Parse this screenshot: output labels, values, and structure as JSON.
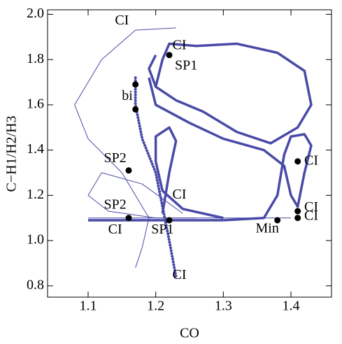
{
  "chart_data": {
    "type": "line",
    "x_label": "CO",
    "y_label": "C−H1/H2/H3",
    "xlim": [
      1.04,
      1.46
    ],
    "ylim": [
      0.75,
      2.02
    ],
    "xticks": [
      1.1,
      1.2,
      1.3,
      1.4
    ],
    "yticks": [
      0.8,
      {
        "value": 1,
        "label": "1.0"
      },
      1.2,
      1.4,
      1.6,
      1.8,
      {
        "value": 2,
        "label": "2.0"
      }
    ],
    "series": [
      {
        "color": "#4a4aa8",
        "style": "thick",
        "x": [
          1.2,
          1.21,
          1.22,
          1.26,
          1.32,
          1.38,
          1.42,
          1.43,
          1.41,
          1.37,
          1.32,
          1.27,
          1.23,
          1.2,
          1.19,
          1.2
        ],
        "y": [
          1.68,
          1.8,
          1.87,
          1.86,
          1.87,
          1.83,
          1.75,
          1.6,
          1.5,
          1.43,
          1.48,
          1.57,
          1.62,
          1.68,
          1.76,
          1.82
        ]
      },
      {
        "color": "#4a4aa8",
        "style": "thick",
        "x": [
          1.19,
          1.2,
          1.25,
          1.3,
          1.36,
          1.39,
          1.4,
          1.41,
          1.42,
          1.43,
          1.42,
          1.4,
          1.39,
          1.38,
          1.36,
          1.3
        ],
        "y": [
          1.72,
          1.6,
          1.52,
          1.45,
          1.4,
          1.33,
          1.2,
          1.15,
          1.3,
          1.42,
          1.47,
          1.46,
          1.38,
          1.2,
          1.1,
          1.09
        ]
      },
      {
        "color": "#4a4aa8",
        "style": "thick",
        "x": [
          1.21,
          1.22,
          1.23,
          1.22,
          1.2,
          1.2,
          1.21,
          1.24,
          1.3
        ],
        "y": [
          1.12,
          1.3,
          1.44,
          1.5,
          1.46,
          1.35,
          1.22,
          1.14,
          1.1
        ]
      },
      {
        "color": "#4a4aa8",
        "style": "dotted",
        "x": [
          1.17,
          1.17,
          1.18,
          1.2,
          1.21,
          1.22,
          1.23
        ],
        "y": [
          1.72,
          1.6,
          1.45,
          1.3,
          1.15,
          1.0,
          0.84
        ]
      },
      {
        "color": "#4a4aa8",
        "style": "thick",
        "x": [
          1.1,
          1.2,
          1.3
        ],
        "y": [
          1.09,
          1.09,
          1.09
        ]
      },
      {
        "color": "#4a4aa8",
        "style": "thin",
        "x": [
          1.1,
          1.25,
          1.4
        ],
        "y": [
          1.1,
          1.1,
          1.1
        ]
      },
      {
        "color": "#4a4aa8",
        "style": "thin",
        "x": [
          1.23,
          1.17,
          1.12,
          1.08,
          1.1,
          1.15,
          1.19,
          1.18,
          1.17
        ],
        "y": [
          1.94,
          1.93,
          1.8,
          1.6,
          1.45,
          1.3,
          1.1,
          0.97,
          0.88
        ]
      },
      {
        "color": "#4a4aa8",
        "style": "thin",
        "x": [
          1.24,
          1.18,
          1.12,
          1.1,
          1.13,
          1.2,
          1.26
        ],
        "y": [
          1.12,
          1.25,
          1.3,
          1.2,
          1.13,
          1.1,
          1.1
        ]
      }
    ],
    "points": {
      "color": "#000000",
      "x": [
        1.22,
        1.17,
        1.17,
        1.16,
        1.41,
        1.16,
        1.22,
        1.38,
        1.41,
        1.41
      ],
      "y": [
        1.82,
        1.69,
        1.58,
        1.31,
        1.35,
        1.1,
        1.09,
        1.09,
        1.13,
        1.1
      ]
    },
    "annotations": [
      {
        "text": "CI",
        "x": 1.15,
        "y": 1.97
      },
      {
        "text": "CI",
        "x": 1.235,
        "y": 1.86
      },
      {
        "text": "SP1",
        "x": 1.245,
        "y": 1.77
      },
      {
        "text": "bi",
        "x": 1.158,
        "y": 1.635
      },
      {
        "text": "SP2",
        "x": 1.14,
        "y": 1.36
      },
      {
        "text": "CI",
        "x": 1.43,
        "y": 1.35
      },
      {
        "text": "CI",
        "x": 1.235,
        "y": 1.2
      },
      {
        "text": "SP2",
        "x": 1.14,
        "y": 1.155
      },
      {
        "text": "CI",
        "x": 1.14,
        "y": 1.045
      },
      {
        "text": "SP1",
        "x": 1.21,
        "y": 1.045
      },
      {
        "text": "Min",
        "x": 1.365,
        "y": 1.05
      },
      {
        "text": "CI",
        "x": 1.43,
        "y": 1.145
      },
      {
        "text": "CI",
        "x": 1.43,
        "y": 1.105
      },
      {
        "text": "CI",
        "x": 1.235,
        "y": 0.845
      }
    ]
  }
}
